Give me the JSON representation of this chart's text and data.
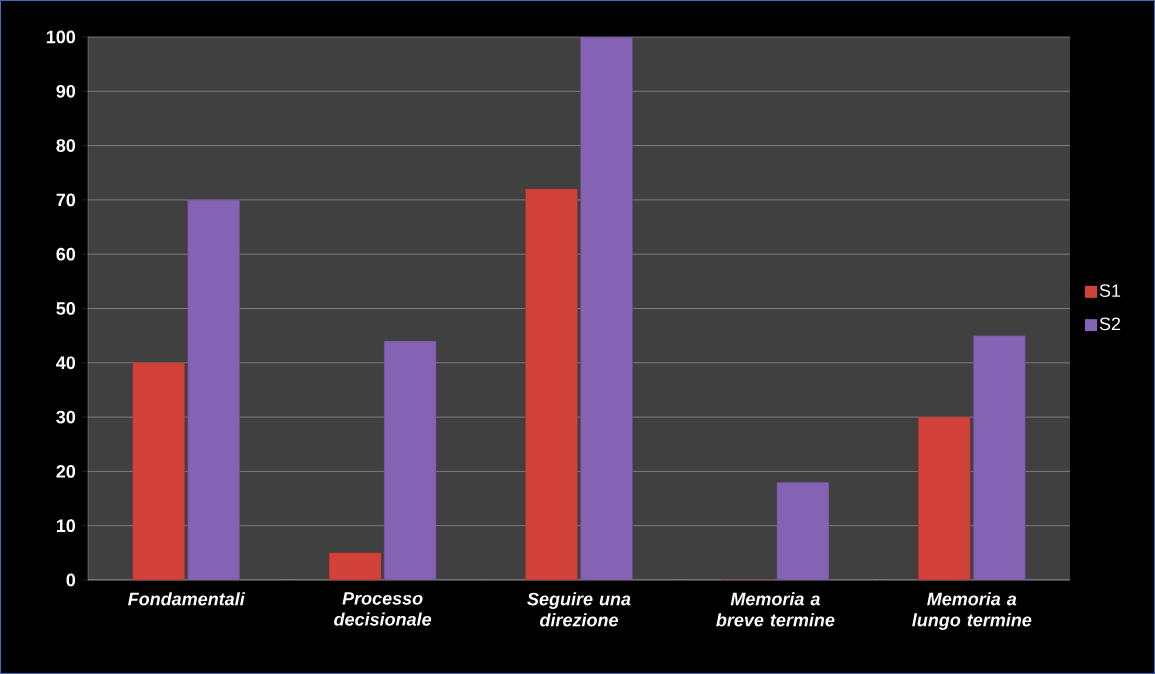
{
  "chart_data": {
    "type": "bar",
    "categories": [
      "Fondamentali",
      "Processo decisionale",
      "Seguire una direzione",
      "Memoria a breve termine",
      "Memoria a lungo termine"
    ],
    "series": [
      {
        "name": "S1",
        "color": "#d2413a",
        "values": [
          40,
          5,
          72,
          0,
          30
        ]
      },
      {
        "name": "S2",
        "color": "#8462b4",
        "values": [
          70,
          44,
          100,
          18,
          45
        ]
      }
    ],
    "ylim": [
      0,
      100
    ],
    "yticks": [
      0,
      10,
      20,
      30,
      40,
      50,
      60,
      70,
      80,
      90,
      100
    ],
    "grid": "y",
    "legend": "right"
  }
}
